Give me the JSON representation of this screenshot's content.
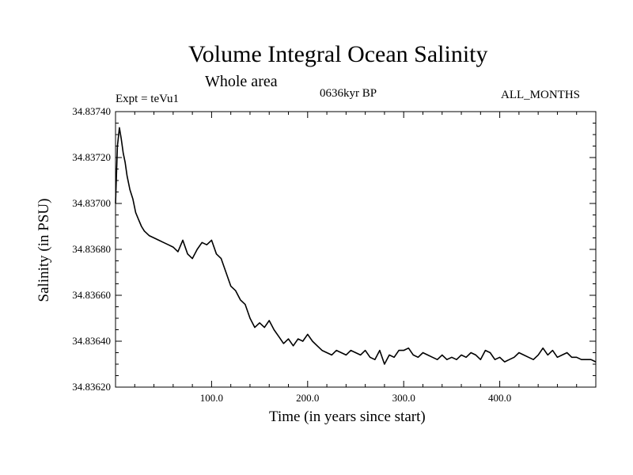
{
  "chart_data": {
    "type": "line",
    "title": "Volume Integral Ocean Salinity",
    "subtitle": "Whole area",
    "annotations": {
      "experiment": "Expt = teVu1",
      "period": "0636kyr BP",
      "months": "ALL_MONTHS"
    },
    "xlabel": "Time (in years since start)",
    "ylabel": "Salinity (in PSU)",
    "xlim": [
      0,
      500
    ],
    "ylim": [
      34.8362,
      34.8374
    ],
    "x_ticks": [
      100,
      200,
      300,
      400
    ],
    "x_tick_labels": [
      "100.0",
      "200.0",
      "300.0",
      "400.0"
    ],
    "y_ticks": [
      34.8362,
      34.8364,
      34.8366,
      34.8368,
      34.837,
      34.8372,
      34.8374
    ],
    "y_tick_labels": [
      "34.83620",
      "34.83640",
      "34.83660",
      "34.83680",
      "34.83700",
      "34.83720",
      "34.83740"
    ],
    "grid": false,
    "series": [
      {
        "color": "#000000",
        "x": [
          0,
          2,
          4,
          6,
          8,
          10,
          12,
          15,
          18,
          21,
          24,
          27,
          30,
          35,
          40,
          45,
          50,
          55,
          60,
          65,
          70,
          75,
          80,
          85,
          90,
          95,
          100,
          105,
          110,
          115,
          120,
          125,
          130,
          135,
          140,
          145,
          150,
          155,
          160,
          165,
          170,
          175,
          180,
          185,
          190,
          195,
          200,
          205,
          210,
          215,
          220,
          225,
          230,
          235,
          240,
          245,
          250,
          255,
          260,
          265,
          270,
          275,
          280,
          285,
          290,
          295,
          300,
          305,
          310,
          315,
          320,
          325,
          330,
          335,
          340,
          345,
          350,
          355,
          360,
          365,
          370,
          375,
          380,
          385,
          390,
          395,
          400,
          405,
          410,
          415,
          420,
          425,
          430,
          435,
          440,
          445,
          450,
          455,
          460,
          465,
          470,
          475,
          480,
          485,
          490,
          495,
          500
        ],
        "values": [
          34.837,
          34.83725,
          34.83733,
          34.83728,
          34.83722,
          34.83718,
          34.83712,
          34.83706,
          34.83702,
          34.83696,
          34.83693,
          34.8369,
          34.83688,
          34.83686,
          34.83685,
          34.83684,
          34.83683,
          34.83682,
          34.83681,
          34.83679,
          34.83684,
          34.83678,
          34.83676,
          34.8368,
          34.83683,
          34.83682,
          34.83684,
          34.83678,
          34.83676,
          34.8367,
          34.83664,
          34.83662,
          34.83658,
          34.83656,
          34.8365,
          34.83646,
          34.83648,
          34.83646,
          34.83649,
          34.83645,
          34.83642,
          34.83639,
          34.83641,
          34.83638,
          34.83641,
          34.8364,
          34.83643,
          34.8364,
          34.83638,
          34.83636,
          34.83635,
          34.83634,
          34.83636,
          34.83635,
          34.83634,
          34.83636,
          34.83635,
          34.83634,
          34.83636,
          34.83633,
          34.83632,
          34.83636,
          34.8363,
          34.83634,
          34.83633,
          34.83636,
          34.83636,
          34.83637,
          34.83634,
          34.83633,
          34.83635,
          34.83634,
          34.83633,
          34.83632,
          34.83634,
          34.83632,
          34.83633,
          34.83632,
          34.83634,
          34.83633,
          34.83635,
          34.83634,
          34.83632,
          34.83636,
          34.83635,
          34.83632,
          34.83633,
          34.83631,
          34.83632,
          34.83633,
          34.83635,
          34.83634,
          34.83633,
          34.83632,
          34.83634,
          34.83637,
          34.83634,
          34.83636,
          34.83633,
          34.83634,
          34.83635,
          34.83633,
          34.83633,
          34.83632,
          34.83632,
          34.83632,
          34.83631
        ]
      }
    ]
  }
}
